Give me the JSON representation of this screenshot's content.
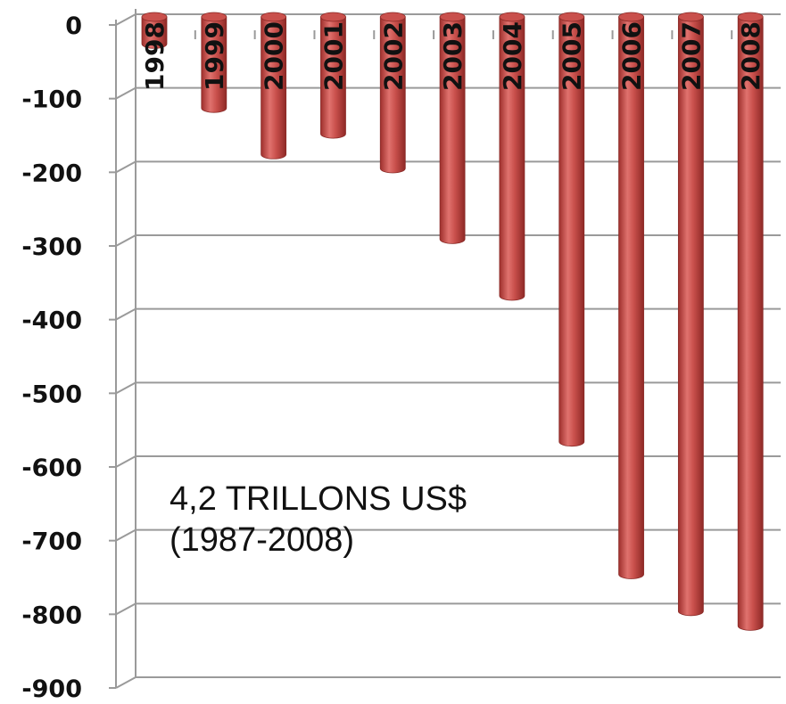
{
  "chart_data": {
    "type": "bar",
    "orientation": "vertical-3d-cylinder",
    "categories": [
      "1998",
      "1999",
      "2000",
      "2001",
      "2002",
      "2003",
      "2004",
      "2005",
      "2006",
      "2007",
      "2008"
    ],
    "values": [
      -33,
      -120,
      -183,
      -155,
      -202,
      -298,
      -375,
      -573,
      -753,
      -803,
      -823
    ],
    "ylim": [
      -900,
      0
    ],
    "yticks": [
      "0",
      "-100",
      "-200",
      "-300",
      "-400",
      "-500",
      "-600",
      "-700",
      "-800",
      "-900"
    ],
    "grid": true,
    "bar_color": "#c0504d",
    "annotation": [
      "4,2 TRILLONS  US$",
      "(1987-2008)"
    ]
  }
}
